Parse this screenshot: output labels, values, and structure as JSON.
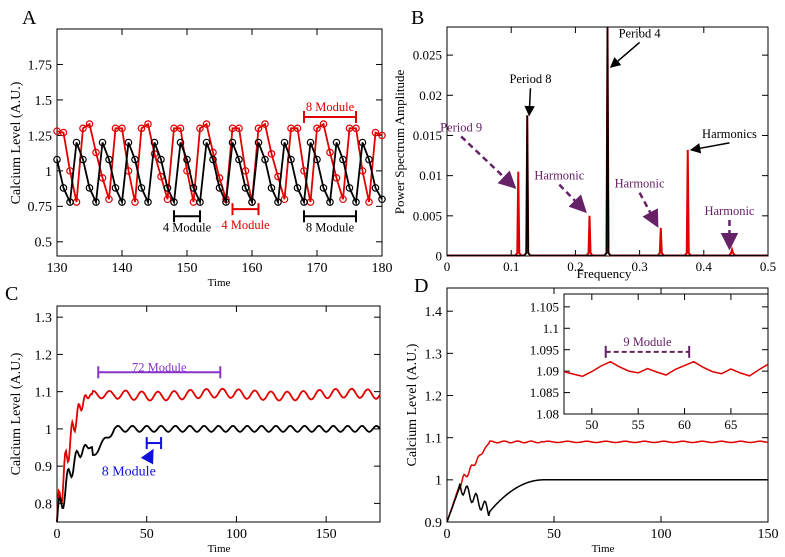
{
  "chart_data": [
    {
      "panel": "A",
      "type": "line",
      "xlabel": "Time",
      "ylabel": "Calcium Level (A.U.)",
      "xlim": [
        130,
        180
      ],
      "ylim": [
        0.4,
        2.0
      ],
      "xticks": [
        130,
        140,
        150,
        160,
        170,
        180
      ],
      "yticks": [
        0.5,
        0.75,
        1,
        1.25,
        1.5,
        1.75
      ],
      "series": [
        {
          "color": "#e00000",
          "marker": "circle",
          "x": [
            130,
            131,
            132,
            133,
            134,
            135,
            136,
            137,
            138,
            139,
            140,
            141,
            142,
            143,
            144,
            145,
            146,
            147,
            148,
            149,
            150,
            151,
            152,
            153,
            154,
            155,
            156,
            157,
            158,
            159,
            160,
            161,
            162,
            163,
            164,
            165,
            166,
            167,
            168,
            169,
            170,
            171,
            172,
            173,
            174,
            175,
            176,
            177,
            178,
            179,
            180
          ],
          "y": [
            1.28,
            1.27,
            1.0,
            0.78,
            1.3,
            1.33,
            1.13,
            0.95,
            0.8,
            1.3,
            1.3,
            1.0,
            0.78,
            1.3,
            1.33,
            1.12,
            0.96,
            0.8,
            1.3,
            1.3,
            1.0,
            0.78,
            1.3,
            1.33,
            1.13,
            0.95,
            0.8,
            1.3,
            1.3,
            1.0,
            0.78,
            1.3,
            1.33,
            1.12,
            0.96,
            0.8,
            1.3,
            1.3,
            1.0,
            0.78,
            1.3,
            1.33,
            1.13,
            0.95,
            0.8,
            1.3,
            1.3,
            1.0,
            0.78,
            1.27,
            1.25
          ]
        },
        {
          "color": "#000000",
          "marker": "circle",
          "x": [
            130,
            131,
            132,
            133,
            134,
            135,
            136,
            137,
            138,
            139,
            140,
            141,
            142,
            143,
            144,
            145,
            146,
            147,
            148,
            149,
            150,
            151,
            152,
            153,
            154,
            155,
            156,
            157,
            158,
            159,
            160,
            161,
            162,
            163,
            164,
            165,
            166,
            167,
            168,
            169,
            170,
            171,
            172,
            173,
            174,
            175,
            176,
            177,
            178,
            179,
            180
          ],
          "y": [
            1.08,
            0.88,
            0.78,
            1.2,
            1.08,
            0.88,
            0.78,
            1.2,
            1.08,
            0.88,
            0.78,
            1.2,
            1.08,
            0.88,
            0.78,
            1.2,
            1.08,
            0.88,
            0.78,
            1.2,
            1.08,
            0.88,
            0.78,
            1.2,
            1.08,
            0.88,
            0.78,
            1.2,
            1.08,
            0.88,
            0.78,
            1.2,
            1.08,
            0.88,
            0.78,
            1.2,
            1.08,
            0.88,
            0.78,
            1.2,
            1.08,
            0.88,
            0.78,
            1.2,
            1.08,
            0.88,
            0.78,
            1.2,
            1.08,
            0.88,
            0.8
          ]
        }
      ],
      "annotations": [
        {
          "text": "8 Module",
          "color": "#e00000",
          "x_from": 168,
          "x_to": 176,
          "y": 1.38,
          "label_y": 1.45
        },
        {
          "text": "4 Module",
          "color": "#000000",
          "x_from": 148,
          "x_to": 152,
          "y": 0.68,
          "label_y": 0.6
        },
        {
          "text": "4 Module",
          "color": "#e00000",
          "x_from": 157,
          "x_to": 161,
          "y": 0.73,
          "label_y": 0.62
        },
        {
          "text": "8 Module",
          "color": "#000000",
          "x_from": 168,
          "x_to": 176,
          "y": 0.68,
          "label_y": 0.6
        }
      ]
    },
    {
      "panel": "B",
      "type": "line",
      "xlabel": "Frequency",
      "ylabel": "Power Spectrum Amplitude",
      "xlim": [
        0,
        0.5
      ],
      "ylim": [
        0,
        0.0285
      ],
      "xticks": [
        0,
        0.1,
        0.2,
        0.3,
        0.4,
        0.5
      ],
      "yticks": [
        0,
        0.005,
        0.01,
        0.015,
        0.02,
        0.025
      ],
      "series": [
        {
          "color": "#e00000",
          "peaks": [
            {
              "x": 0.111,
              "y": 0.0105
            },
            {
              "x": 0.125,
              "y": 0.0175
            },
            {
              "x": 0.222,
              "y": 0.005
            },
            {
              "x": 0.25,
              "y": 0.0285
            },
            {
              "x": 0.333,
              "y": 0.0035
            },
            {
              "x": 0.375,
              "y": 0.0132
            },
            {
              "x": 0.444,
              "y": 0.0008
            }
          ]
        },
        {
          "color": "#000000",
          "peaks": [
            {
              "x": 0.125,
              "y": 0.0175
            },
            {
              "x": 0.25,
              "y": 0.0285
            }
          ]
        }
      ],
      "annotations": [
        {
          "text": "Period 8",
          "color": "#000000",
          "text_x": 0.13,
          "text_y": 0.0215,
          "arrow_to_x": 0.128,
          "arrow_to_y": 0.0175,
          "dashed": false
        },
        {
          "text": "Period 4",
          "color": "#000000",
          "text_x": 0.3,
          "text_y": 0.0272,
          "arrow_to_x": 0.255,
          "arrow_to_y": 0.0235,
          "dashed": false
        },
        {
          "text": "Harmonics",
          "color": "#000000",
          "text_x": 0.44,
          "text_y": 0.0147,
          "arrow_to_x": 0.38,
          "arrow_to_y": 0.0132,
          "dashed": false
        },
        {
          "text": "Period 9",
          "color": "#662266",
          "text_x": 0.022,
          "text_y": 0.0155,
          "arrow_to_x": 0.106,
          "arrow_to_y": 0.0085,
          "dashed": true
        },
        {
          "text": "Harmonic",
          "color": "#662266",
          "text_x": 0.175,
          "text_y": 0.0095,
          "arrow_to_x": 0.216,
          "arrow_to_y": 0.0055,
          "dashed": true
        },
        {
          "text": "Harmonic",
          "color": "#662266",
          "text_x": 0.3,
          "text_y": 0.0085,
          "arrow_to_x": 0.328,
          "arrow_to_y": 0.0037,
          "dashed": true
        },
        {
          "text": "Harmonic",
          "color": "#662266",
          "text_x": 0.44,
          "text_y": 0.0051,
          "arrow_to_x": 0.44,
          "arrow_to_y": 0.0009,
          "dashed": true
        }
      ]
    },
    {
      "panel": "C",
      "type": "line",
      "xlabel": "Time",
      "ylabel": "Calcium Level (A.U.)",
      "xlim": [
        0,
        180
      ],
      "ylim": [
        0.75,
        1.33
      ],
      "xticks": [
        0,
        50,
        100,
        150
      ],
      "yticks": [
        0.8,
        0.9,
        1,
        1.1,
        1.2,
        1.3
      ],
      "series": [
        {
          "color": "#e00000",
          "baseline": 1.092,
          "wobble": 0.012,
          "period": 9
        },
        {
          "color": "#000000",
          "baseline": 1.0,
          "wobble": 0.008,
          "period": 8
        }
      ],
      "annotations": [
        {
          "text": "72 Module",
          "color": "#8833cc",
          "x_from": 23,
          "x_to": 91,
          "y": 1.152,
          "label_y": 1.165
        },
        {
          "text": "8 Module",
          "color": "#1010dd",
          "x_from": 50,
          "x_to": 58,
          "y": 0.962,
          "label_y": 0.885
        }
      ]
    },
    {
      "panel": "D",
      "type": "line",
      "xlabel": "Time",
      "ylabel": "Calcium Level (A.U.)",
      "xlim": [
        0,
        150
      ],
      "ylim": [
        0.9,
        1.455
      ],
      "xticks": [
        0,
        50,
        100,
        150
      ],
      "yticks": [
        0.9,
        1,
        1.1,
        1.2,
        1.3,
        1.4
      ],
      "series": [
        {
          "color": "#e00000",
          "baseline": 1.09
        },
        {
          "color": "#000000",
          "baseline": 1.0
        }
      ],
      "inset": {
        "xlim": [
          47,
          69
        ],
        "ylim": [
          1.08,
          1.108
        ],
        "xticks": [
          50,
          55,
          60,
          65
        ],
        "yticks": [
          1.08,
          1.085,
          1.09,
          1.095,
          1.1,
          1.105
        ],
        "series": [
          {
            "color": "#e00000",
            "x": [
              47,
              48,
              49,
              50,
              51,
              52,
              53,
              54,
              55,
              56,
              57,
              58,
              59,
              60,
              61,
              62,
              63,
              64,
              65,
              66,
              67,
              68,
              69
            ],
            "y": [
              1.0899,
              1.0893,
              1.0888,
              1.0899,
              1.0912,
              1.0922,
              1.091,
              1.09,
              1.0896,
              1.0906,
              1.0898,
              1.0891,
              1.0904,
              1.0913,
              1.0922,
              1.0909,
              1.0899,
              1.0894,
              1.0905,
              1.0896,
              1.0889,
              1.0903,
              1.0916
            ]
          }
        ],
        "annotations": [
          {
            "text": "9 Module",
            "color": "#662266",
            "x_from": 51.5,
            "x_to": 60.5,
            "y": 1.0945,
            "label_y": 1.0968,
            "dashed": true
          }
        ]
      }
    }
  ]
}
